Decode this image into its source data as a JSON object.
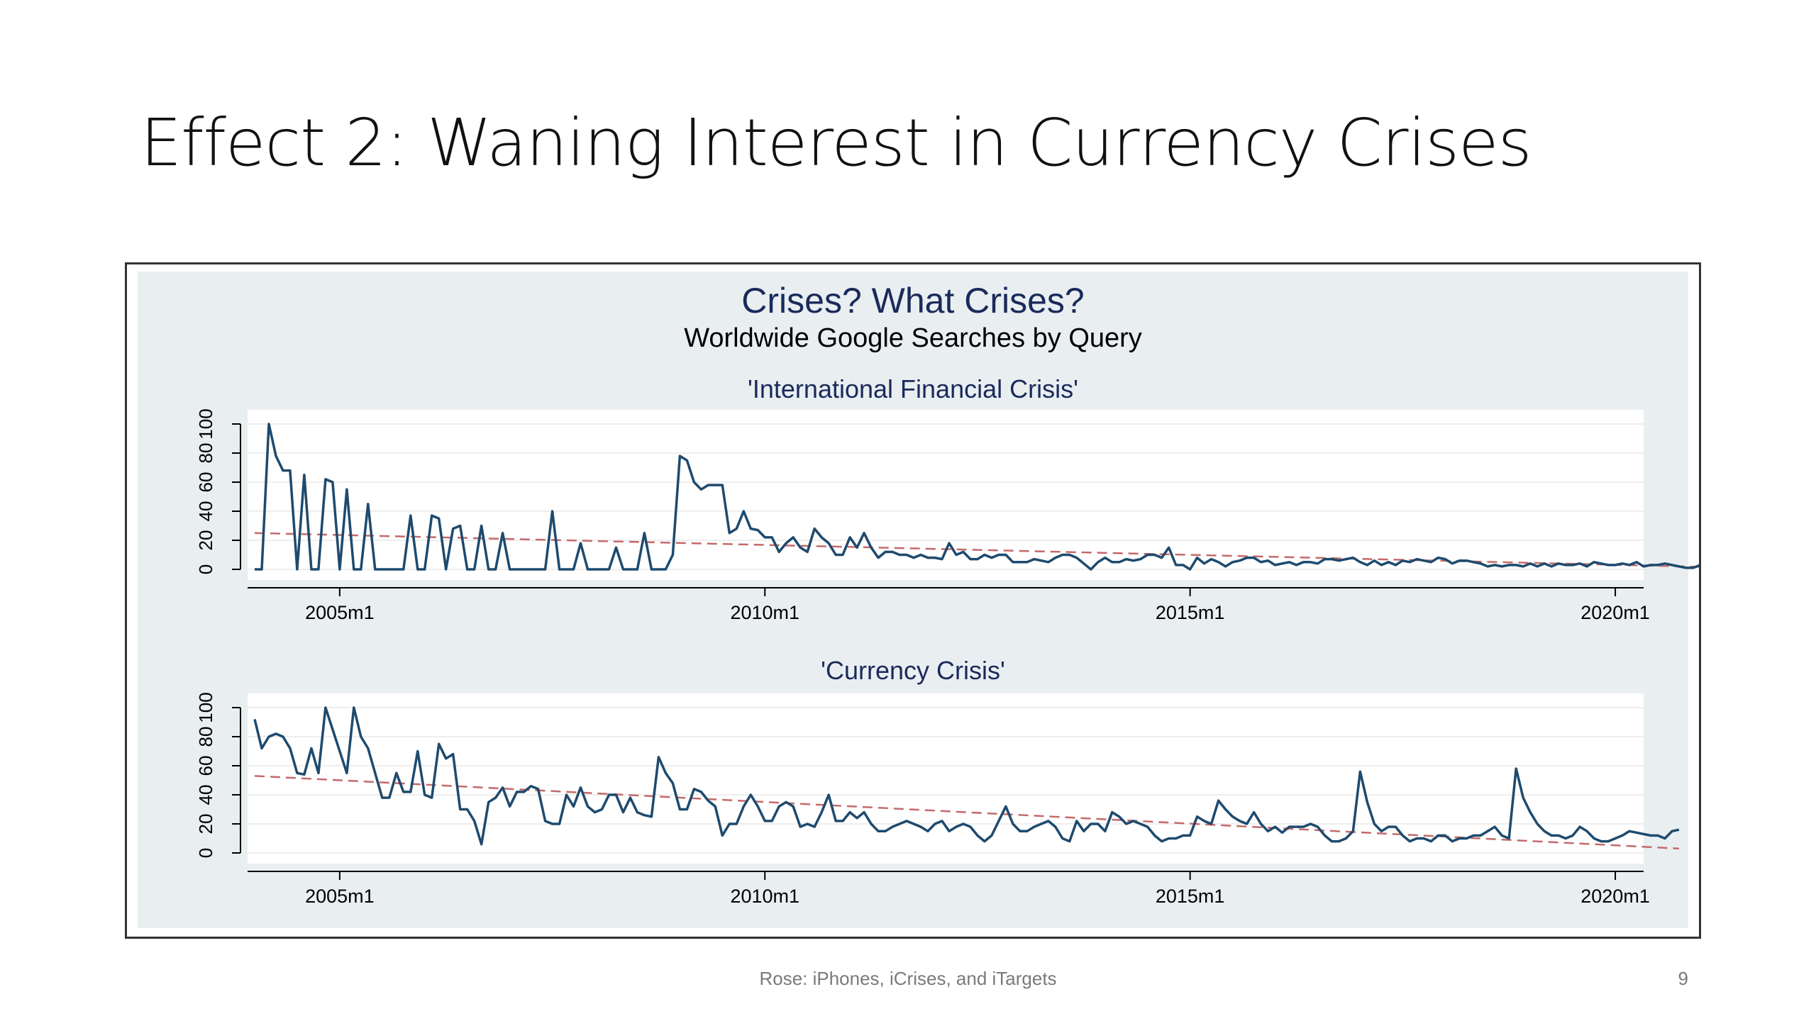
{
  "slide": {
    "title": "Effect 2: Waning Interest in Currency Crises",
    "footer": "Rose: iPhones, iCrises, and iTargets",
    "page_number": "9"
  },
  "colors": {
    "panel_background": "#e9eef1",
    "plot_background": "#ffffff",
    "series_line": "#1e4a6e",
    "trend_line": "#c46a6a",
    "title_color": "#1a2a5a"
  },
  "chart_data": {
    "title": "Crises?  What Crises?",
    "subtitle": "Worldwide Google Searches by Query",
    "type": "line",
    "panels": [
      {
        "title": "'International Financial Crisis'",
        "x_ticks": [
          "2005m1",
          "2010m1",
          "2015m1",
          "2020m1"
        ],
        "y_ticks": [
          "0",
          "20",
          "40",
          "60",
          "80",
          "100"
        ],
        "xlim": [
          "2003m12",
          "2020m5"
        ],
        "ylim": [
          0,
          100
        ],
        "series": [
          {
            "values": [
              0,
              0,
              100,
              78,
              68,
              68,
              0,
              65,
              0,
              0,
              62,
              60,
              0,
              55,
              0,
              0,
              45,
              0,
              0,
              0,
              0,
              0,
              37,
              0,
              0,
              37,
              35,
              0,
              28,
              30,
              0,
              0,
              30,
              0,
              0,
              25,
              0,
              0,
              0,
              0,
              0,
              0,
              40,
              0,
              0,
              0,
              18,
              0,
              0,
              0,
              0,
              15,
              0,
              0,
              0,
              25,
              0,
              0,
              0,
              10,
              78,
              75,
              60,
              55,
              58,
              58,
              58,
              25,
              28,
              40,
              28,
              27,
              22,
              22,
              12,
              18,
              22,
              15,
              12,
              28,
              22,
              18,
              10,
              10,
              22,
              15,
              25,
              15,
              8,
              12,
              12,
              10,
              10,
              8,
              10,
              8,
              8,
              7,
              18,
              10,
              12,
              7,
              7,
              10,
              8,
              10,
              10,
              5,
              5,
              5,
              7,
              6,
              5,
              8,
              10,
              10,
              8,
              4,
              0,
              5,
              8,
              5,
              5,
              7,
              6,
              7,
              10,
              10,
              8,
              15,
              3,
              3,
              0,
              8,
              4,
              7,
              5,
              2,
              5,
              6,
              8,
              8,
              5,
              6,
              3,
              4,
              5,
              3,
              5,
              5,
              4,
              7,
              7,
              6,
              7,
              8,
              5,
              3,
              6,
              3,
              5,
              3,
              6,
              5,
              7,
              6,
              5,
              8,
              7,
              4,
              6,
              6,
              5,
              4,
              2,
              3,
              2,
              3,
              3,
              2,
              4,
              2,
              4,
              2,
              4,
              3,
              3,
              4,
              2,
              5,
              4,
              3,
              3,
              4,
              3,
              5,
              2,
              3,
              3,
              4,
              3,
              2,
              1,
              1,
              3,
              2,
              3,
              1,
              1,
              1,
              1,
              2,
              1,
              2,
              3,
              7
            ]
          },
          {
            "values": [
              25,
              0.5
            ]
          }
        ]
      },
      {
        "title": "'Currency Crisis'",
        "x_ticks": [
          "2005m1",
          "2010m1",
          "2015m1",
          "2020m1"
        ],
        "y_ticks": [
          "0",
          "20",
          "40",
          "60",
          "80",
          "100"
        ],
        "xlim": [
          "2003m12",
          "2020m5"
        ],
        "ylim": [
          0,
          100
        ],
        "series": [
          {
            "values": [
              92,
              72,
              80,
              82,
              80,
              72,
              55,
              54,
              72,
              55,
              100,
              85,
              70,
              55,
              100,
              80,
              72,
              55,
              38,
              38,
              55,
              42,
              42,
              70,
              40,
              38,
              75,
              65,
              68,
              30,
              30,
              22,
              6,
              35,
              38,
              45,
              32,
              42,
              42,
              46,
              44,
              22,
              20,
              20,
              40,
              32,
              45,
              32,
              28,
              30,
              40,
              40,
              28,
              38,
              28,
              26,
              25,
              66,
              55,
              48,
              30,
              30,
              44,
              42,
              36,
              32,
              12,
              20,
              20,
              32,
              40,
              32,
              22,
              22,
              32,
              35,
              32,
              18,
              20,
              18,
              28,
              40,
              22,
              22,
              28,
              24,
              28,
              20,
              15,
              15,
              18,
              20,
              22,
              20,
              18,
              15,
              20,
              22,
              15,
              18,
              20,
              18,
              12,
              8,
              12,
              22,
              32,
              20,
              15,
              15,
              18,
              20,
              22,
              18,
              10,
              8,
              22,
              15,
              20,
              20,
              15,
              28,
              25,
              20,
              22,
              20,
              18,
              12,
              8,
              10,
              10,
              12,
              12,
              25,
              22,
              20,
              36,
              30,
              25,
              22,
              20,
              28,
              20,
              15,
              18,
              14,
              18,
              18,
              18,
              20,
              18,
              12,
              8,
              8,
              10,
              15,
              56,
              35,
              20,
              15,
              18,
              18,
              12,
              8,
              10,
              10,
              8,
              12,
              12,
              8,
              10,
              10,
              12,
              12,
              15,
              18,
              12,
              10,
              58,
              38,
              28,
              20,
              15,
              12,
              12,
              10,
              12,
              18,
              15,
              10,
              8,
              8,
              10,
              12,
              15,
              14,
              13,
              12,
              12,
              10,
              15,
              16
            ]
          },
          {
            "values": [
              53,
              3
            ]
          }
        ]
      }
    ]
  }
}
